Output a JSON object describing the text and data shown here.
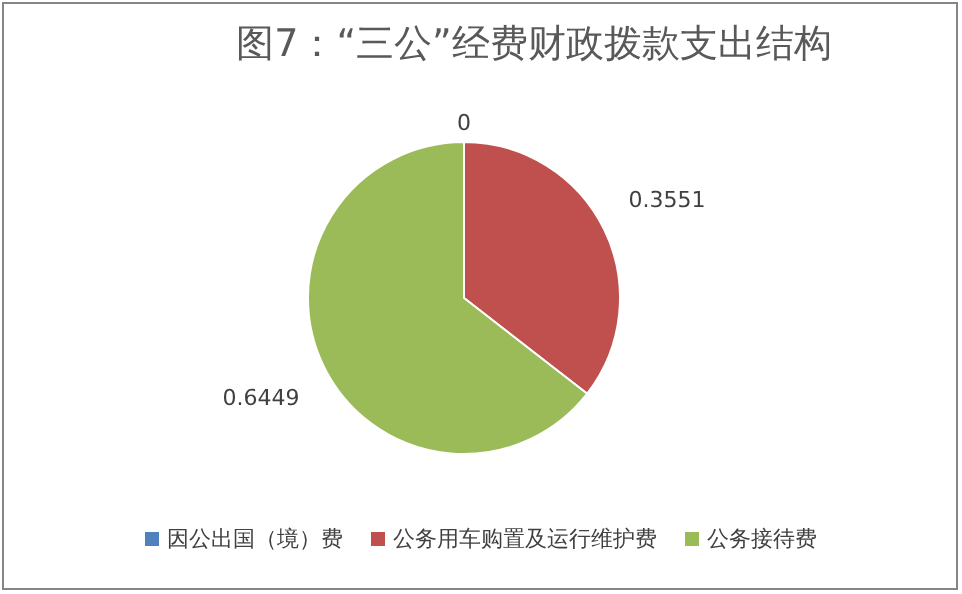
{
  "chart_data": {
    "type": "pie",
    "title": "图7：“三公”经费财政拨款支出结构",
    "categories": [
      "因公出国（境）费",
      "公务用车购置及运行维护费",
      "公务接待费"
    ],
    "values": [
      0,
      0.3551,
      0.6449
    ],
    "colors": [
      "#4f81bd",
      "#c0504d",
      "#9bbb59"
    ],
    "value_labels": [
      "0",
      "0.3551",
      "0.6449"
    ],
    "legend": "bottom"
  }
}
